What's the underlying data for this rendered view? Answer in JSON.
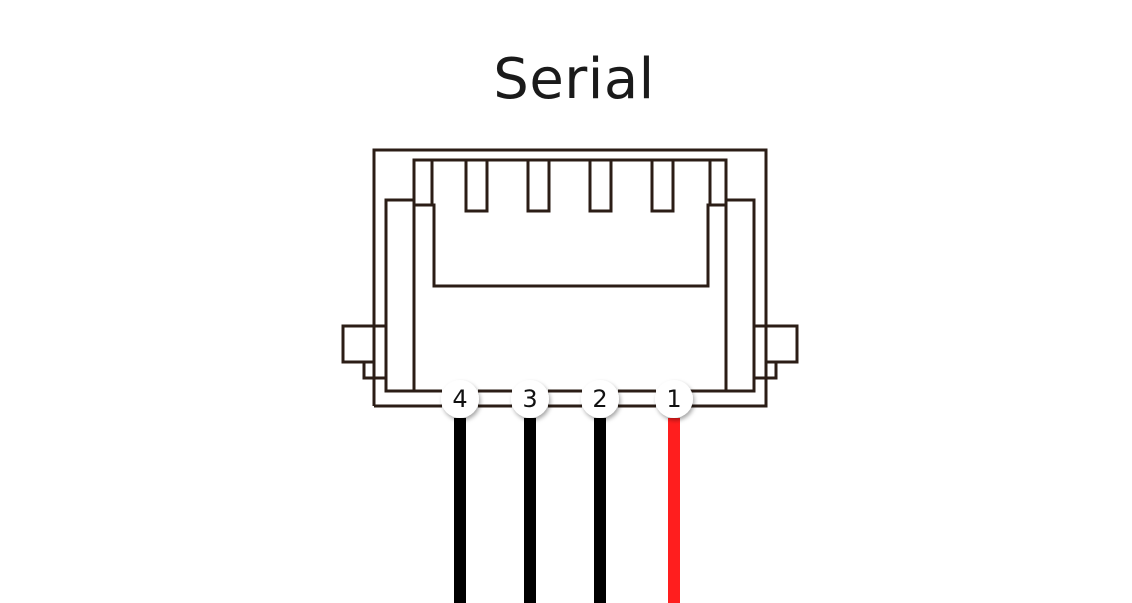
{
  "title": "Serial",
  "pins": [
    {
      "label": "4",
      "wire_color": "#000000"
    },
    {
      "label": "3",
      "wire_color": "#000000"
    },
    {
      "label": "2",
      "wire_color": "#000000"
    },
    {
      "label": "1",
      "wire_color": "#ff1e1e"
    }
  ],
  "colors": {
    "outline": "#2b1d16",
    "background": "#ffffff",
    "text": "#1a1a1a"
  }
}
